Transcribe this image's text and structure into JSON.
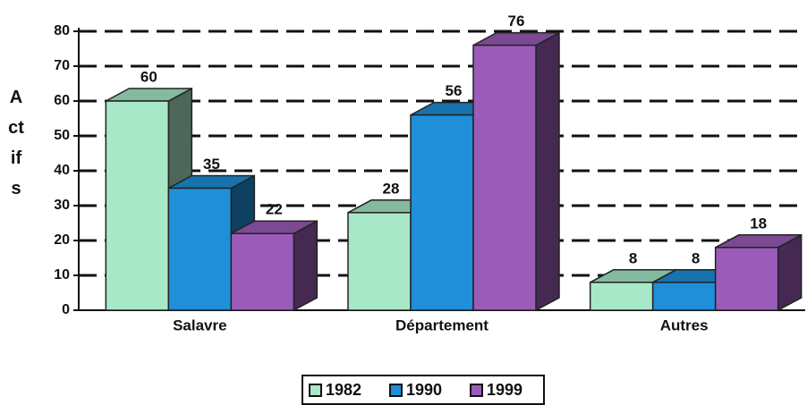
{
  "chart_data": {
    "type": "bar3d",
    "y_label": "Actifs",
    "categories": [
      "Salavre",
      "Département",
      "Autres"
    ],
    "series": [
      {
        "name": "1982",
        "color": "#a8e8c8",
        "values": [
          60,
          28,
          8
        ]
      },
      {
        "name": "1990",
        "color": "#1e8fd8",
        "values": [
          35,
          56,
          8
        ]
      },
      {
        "name": "1999",
        "color": "#9a5cb8",
        "values": [
          22,
          76,
          18
        ]
      }
    ],
    "ylim": [
      0,
      80
    ],
    "yticks": [
      0,
      10,
      20,
      30,
      40,
      50,
      60,
      70,
      80
    ],
    "grid": true,
    "legend": "bottom"
  }
}
